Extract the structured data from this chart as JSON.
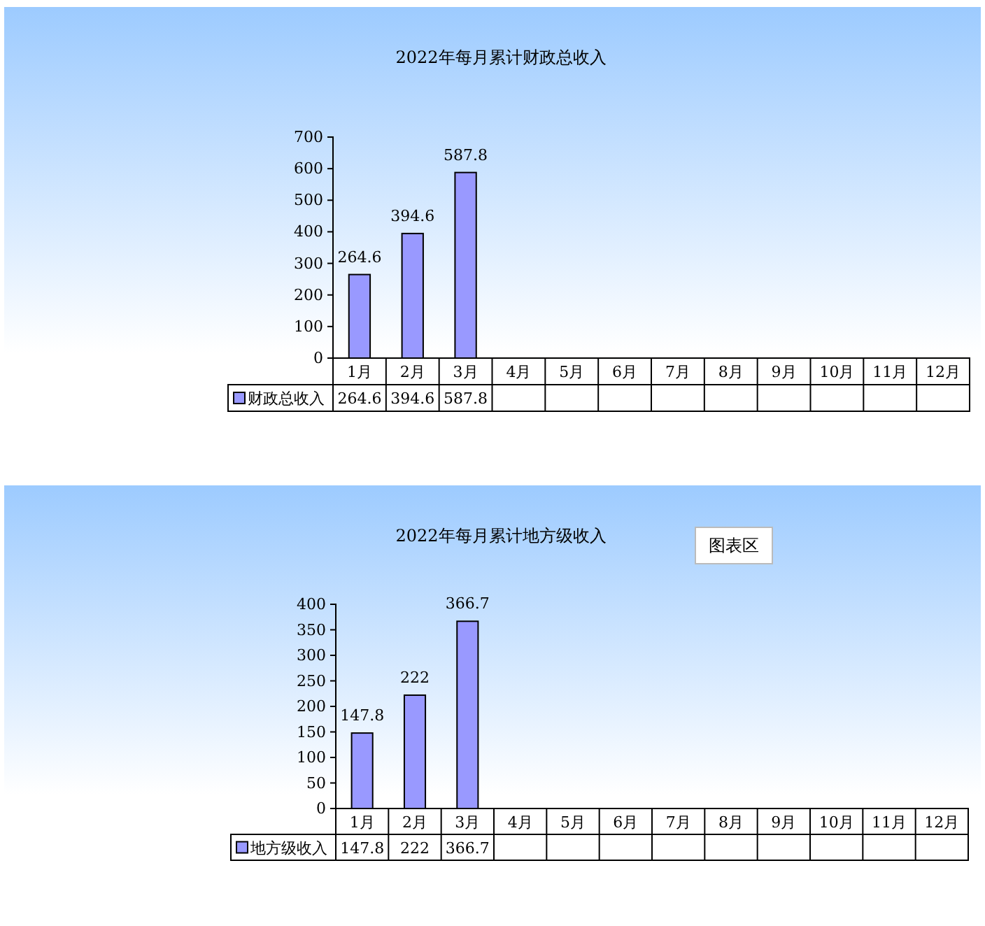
{
  "chart_data": [
    {
      "type": "bar",
      "title": "2022年每月累计财政总收入",
      "categories": [
        "1月",
        "2月",
        "3月",
        "4月",
        "5月",
        "6月",
        "7月",
        "8月",
        "9月",
        "10月",
        "11月",
        "12月"
      ],
      "series": [
        {
          "name": "财政总收入",
          "color": "#9999ff",
          "values": [
            264.6,
            394.6,
            587.8,
            null,
            null,
            null,
            null,
            null,
            null,
            null,
            null,
            null
          ]
        }
      ],
      "ylim": [
        0,
        700
      ],
      "yticks": [
        0,
        100,
        200,
        300,
        400,
        500,
        600,
        700
      ],
      "data_labels": true,
      "grid": false,
      "legend": "bottom",
      "annotations": [
        "264.6",
        "394.6",
        "587.8"
      ]
    },
    {
      "type": "bar",
      "title": "2022年每月累计地方级收入",
      "categories": [
        "1月",
        "2月",
        "3月",
        "4月",
        "5月",
        "6月",
        "7月",
        "8月",
        "9月",
        "10月",
        "11月",
        "12月"
      ],
      "series": [
        {
          "name": "地方级收入",
          "color": "#9999ff",
          "values": [
            147.8,
            222,
            366.7,
            null,
            null,
            null,
            null,
            null,
            null,
            null,
            null,
            null
          ]
        }
      ],
      "ylim": [
        0,
        400
      ],
      "yticks": [
        0,
        50,
        100,
        150,
        200,
        250,
        300,
        350,
        400
      ],
      "data_labels": true,
      "grid": false,
      "legend": "bottom",
      "annotations": [
        "147.8",
        "222",
        "366.7",
        "图表区"
      ]
    }
  ]
}
